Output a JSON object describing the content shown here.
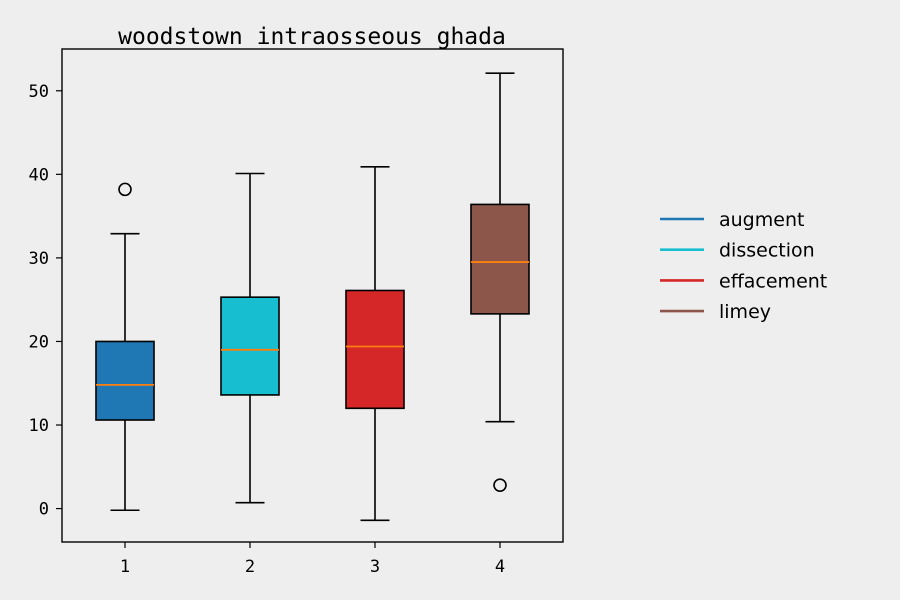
{
  "chart_data": {
    "type": "box",
    "title": "woodstown intraosseous ghada",
    "xlabel": "",
    "ylabel": "",
    "categories": [
      "1",
      "2",
      "3",
      "4"
    ],
    "ylim": [
      -4,
      55
    ],
    "yticks": [
      0,
      10,
      20,
      30,
      40,
      50
    ],
    "grid": false,
    "legend_position": "right",
    "series": [
      {
        "name": "augment",
        "color": "#1f77b4",
        "whisker_low": -0.2,
        "q1": 10.6,
        "median": 14.8,
        "q3": 20.0,
        "whisker_high": 32.9,
        "outliers": [
          38.2
        ]
      },
      {
        "name": "dissection",
        "color": "#17becf",
        "whisker_low": 0.7,
        "q1": 13.6,
        "median": 19.0,
        "q3": 25.3,
        "whisker_high": 40.1,
        "outliers": []
      },
      {
        "name": "effacement",
        "color": "#d62728",
        "whisker_low": -1.4,
        "q1": 12.0,
        "median": 19.4,
        "q3": 26.1,
        "whisker_high": 40.9,
        "outliers": []
      },
      {
        "name": "limey",
        "color": "#8c564b",
        "whisker_low": 10.4,
        "q1": 23.3,
        "median": 29.5,
        "q3": 36.4,
        "whisker_high": 52.1,
        "outliers": [
          2.8
        ]
      }
    ],
    "median_color": "#ff7f0e"
  }
}
